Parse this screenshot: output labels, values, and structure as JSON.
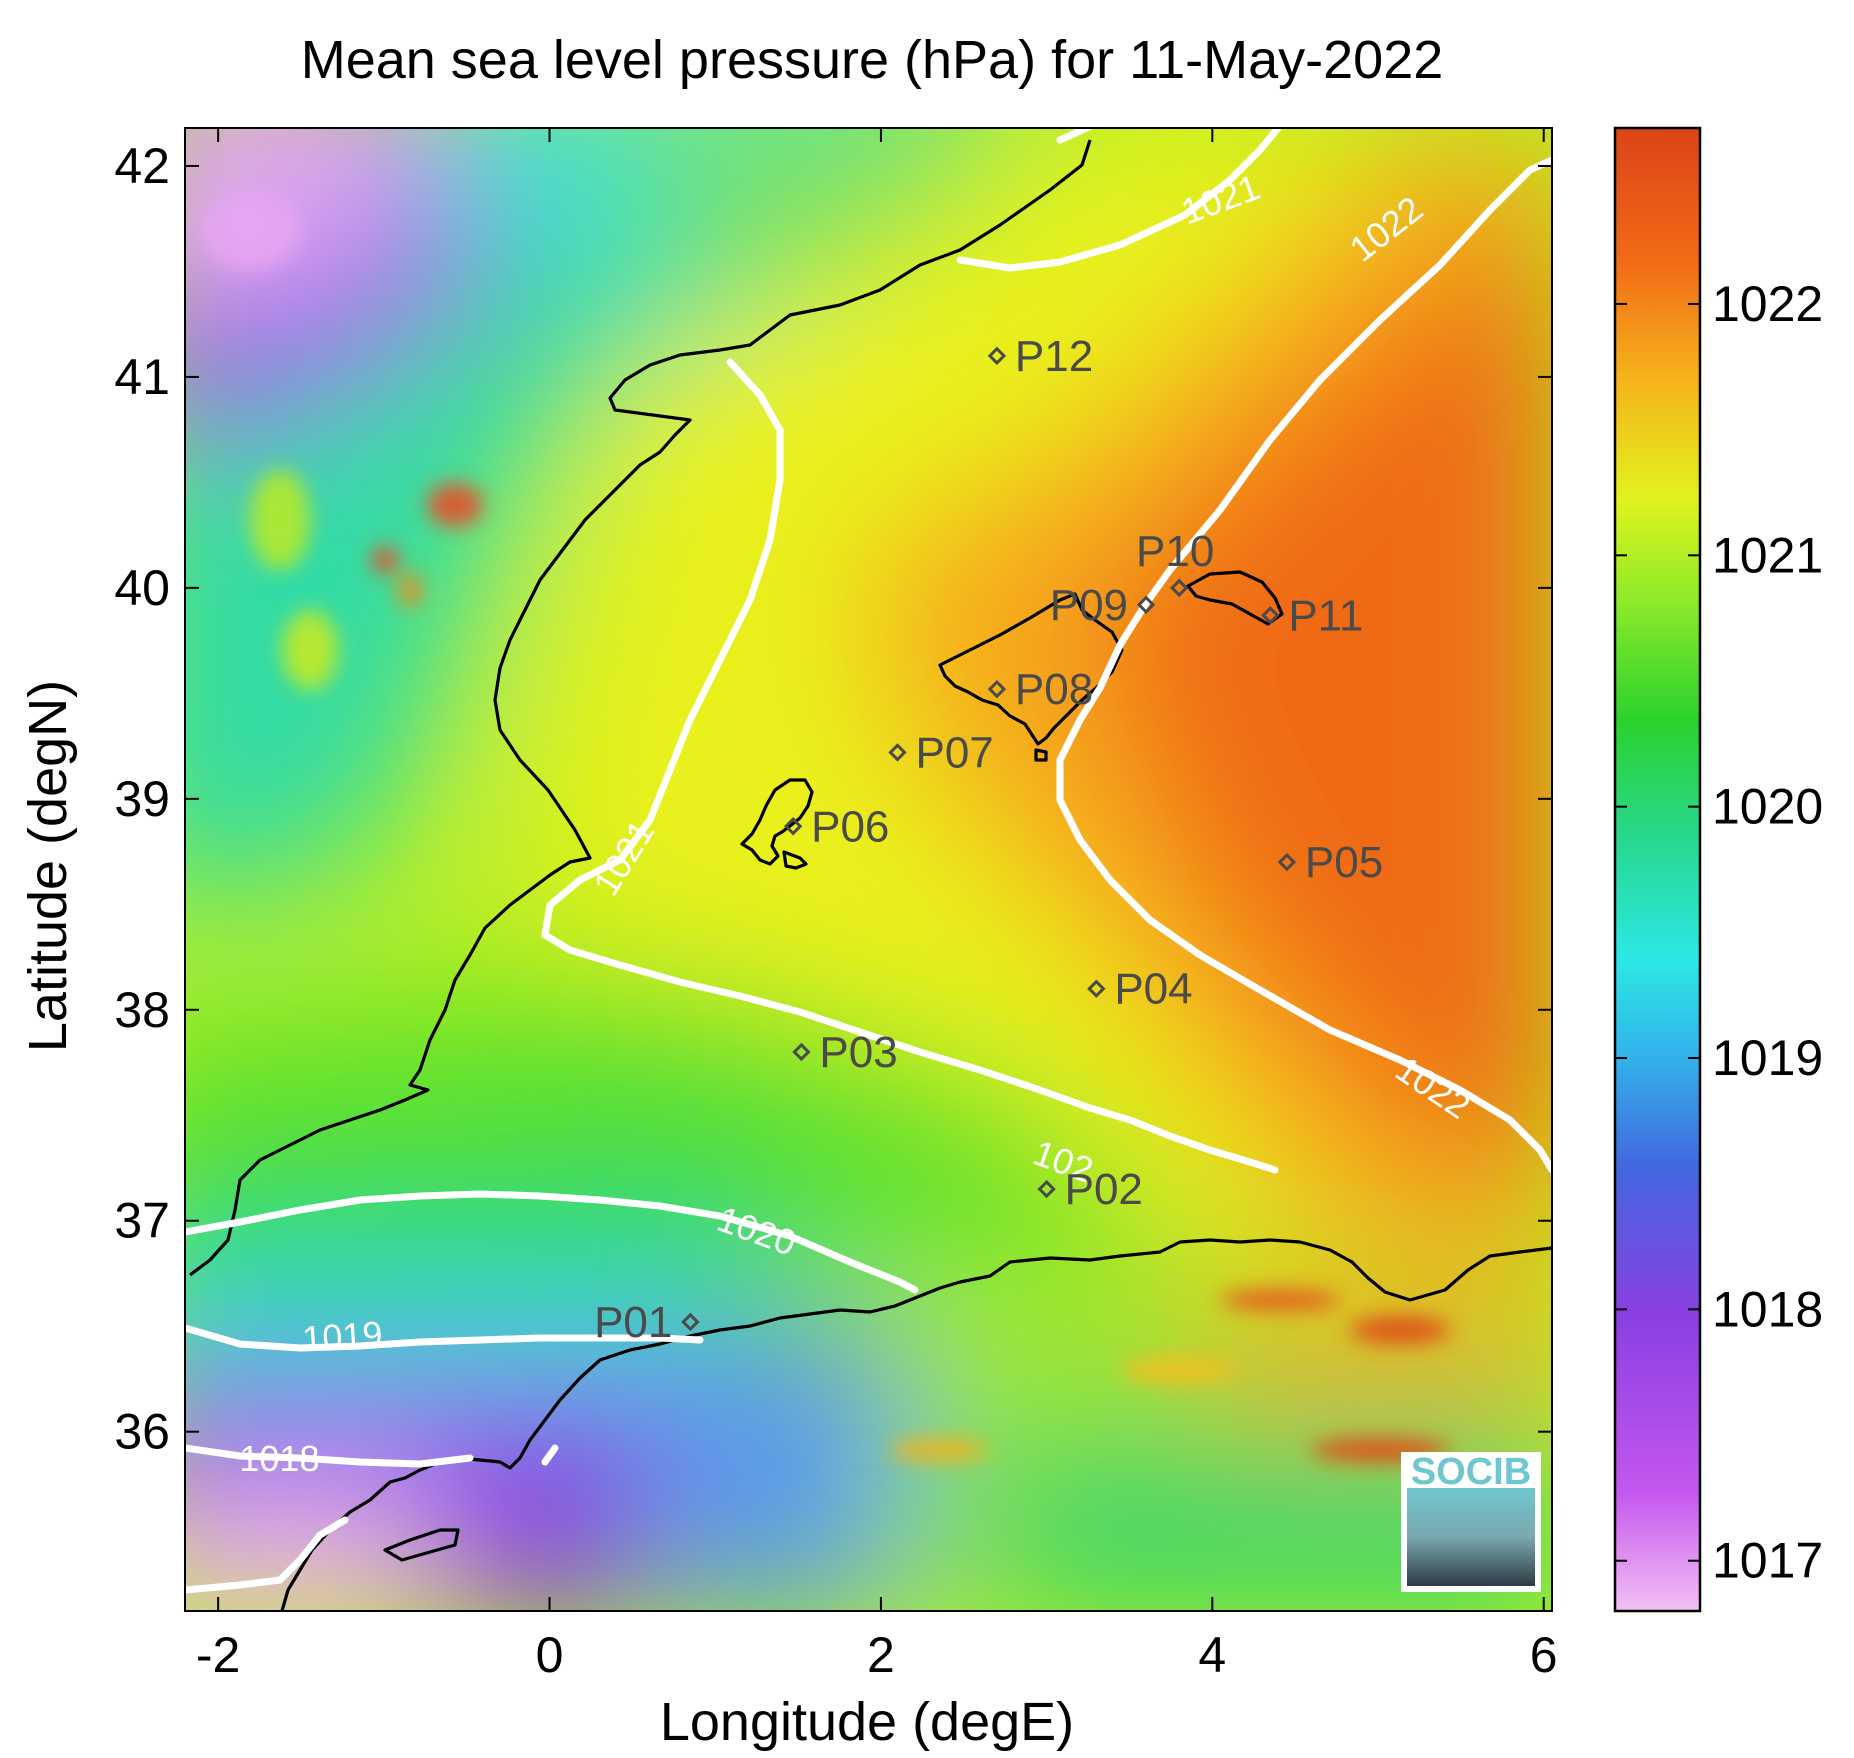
{
  "title": "Mean sea level pressure (hPa) for 11-May-2022",
  "xlabel": "Longitude (degE)",
  "ylabel": "Latitude (degN)",
  "x_ticks": [
    {
      "value": -2,
      "label": "-2"
    },
    {
      "value": 0,
      "label": "0"
    },
    {
      "value": 2,
      "label": "2"
    },
    {
      "value": 4,
      "label": "4"
    },
    {
      "value": 6,
      "label": "6"
    }
  ],
  "y_ticks": [
    {
      "value": 36,
      "label": "36"
    },
    {
      "value": 37,
      "label": "37"
    },
    {
      "value": 38,
      "label": "38"
    },
    {
      "value": 39,
      "label": "39"
    },
    {
      "value": 40,
      "label": "40"
    },
    {
      "value": 41,
      "label": "41"
    },
    {
      "value": 42,
      "label": "42"
    }
  ],
  "colorbar": {
    "range": [
      1016.8,
      1022.7
    ],
    "ticks": [
      {
        "value": 1017,
        "label": "1017"
      },
      {
        "value": 1018,
        "label": "1018"
      },
      {
        "value": 1019,
        "label": "1019"
      },
      {
        "value": 1020,
        "label": "1020"
      },
      {
        "value": 1021,
        "label": "1021"
      },
      {
        "value": 1022,
        "label": "1022"
      }
    ],
    "colors": [
      "#f3c1f3",
      "#b040e8",
      "#7a3ee0",
      "#3f7be2",
      "#2fe0e8",
      "#2bd25a",
      "#8cef2a",
      "#e4f21e",
      "#f5b41c",
      "#f26a16",
      "#e04818"
    ]
  },
  "contour_labels": [
    {
      "text": "1021",
      "lon": 4.05,
      "lat": 41.84
    },
    {
      "text": "1022",
      "lon": 5.05,
      "lat": 41.7
    },
    {
      "text": "1021",
      "lon": 0.45,
      "lat": 38.72
    },
    {
      "text": "1022",
      "lon": 5.33,
      "lat": 37.63
    },
    {
      "text": "1020",
      "lon": 1.25,
      "lat": 36.95
    },
    {
      "text": "1019",
      "lon": -1.25,
      "lat": 36.45
    },
    {
      "text": "1018",
      "lon": -1.63,
      "lat": 35.87
    },
    {
      "text": "102",
      "lon": 3.1,
      "lat": 37.28
    }
  ],
  "points": [
    {
      "label": "P01",
      "lon": 0.85,
      "lat": 36.52,
      "side": "left"
    },
    {
      "label": "P02",
      "lon": 3.0,
      "lat": 37.15,
      "side": "right"
    },
    {
      "label": "P03",
      "lon": 1.52,
      "lat": 37.8,
      "side": "right"
    },
    {
      "label": "P04",
      "lon": 3.3,
      "lat": 38.1,
      "side": "right"
    },
    {
      "label": "P05",
      "lon": 4.45,
      "lat": 38.7,
      "side": "right"
    },
    {
      "label": "P06",
      "lon": 1.47,
      "lat": 38.87,
      "side": "right"
    },
    {
      "label": "P07",
      "lon": 2.1,
      "lat": 39.22,
      "side": "right"
    },
    {
      "label": "P08",
      "lon": 2.7,
      "lat": 39.52,
      "side": "right"
    },
    {
      "label": "P09",
      "lon": 3.6,
      "lat": 39.92,
      "side": "left"
    },
    {
      "label": "P10",
      "lon": 3.8,
      "lat": 40.0,
      "side": "above"
    },
    {
      "label": "P11",
      "lon": 4.35,
      "lat": 39.87,
      "side": "right"
    },
    {
      "label": "P12",
      "lon": 2.7,
      "lat": 41.1,
      "side": "right"
    }
  ],
  "logo": {
    "text": "SOCIB"
  }
}
